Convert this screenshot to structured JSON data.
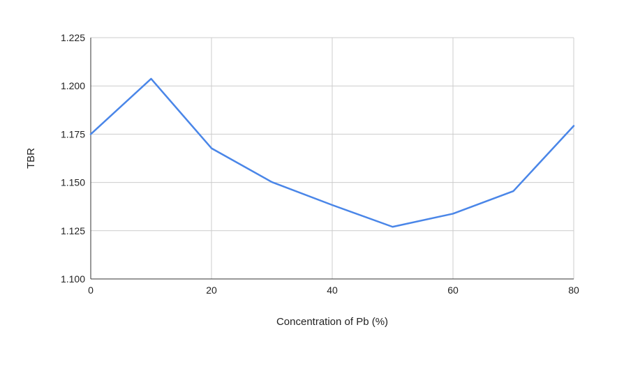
{
  "chart_data": {
    "type": "line",
    "title": "",
    "xlabel": "Concentration of Pb (%)",
    "ylabel": "TBR",
    "xlim": [
      0,
      80
    ],
    "ylim": [
      1.1,
      1.225
    ],
    "x_ticks": [
      0,
      20,
      40,
      60,
      80
    ],
    "x_tick_labels": [
      "0",
      "20",
      "40",
      "60",
      "80"
    ],
    "y_ticks": [
      1.1,
      1.125,
      1.15,
      1.175,
      1.2,
      1.225
    ],
    "y_tick_labels": [
      "1.100",
      "1.125",
      "1.150",
      "1.175",
      "1.200",
      "1.225"
    ],
    "grid": true,
    "legend": "none",
    "series": [
      {
        "color": "#4a86e8",
        "x": [
          0,
          10,
          20,
          30,
          40,
          50,
          60,
          70,
          80
        ],
        "y": [
          1.175,
          1.2037,
          1.1677,
          1.1502,
          1.1383,
          1.127,
          1.1338,
          1.1455,
          1.1793
        ]
      }
    ]
  }
}
